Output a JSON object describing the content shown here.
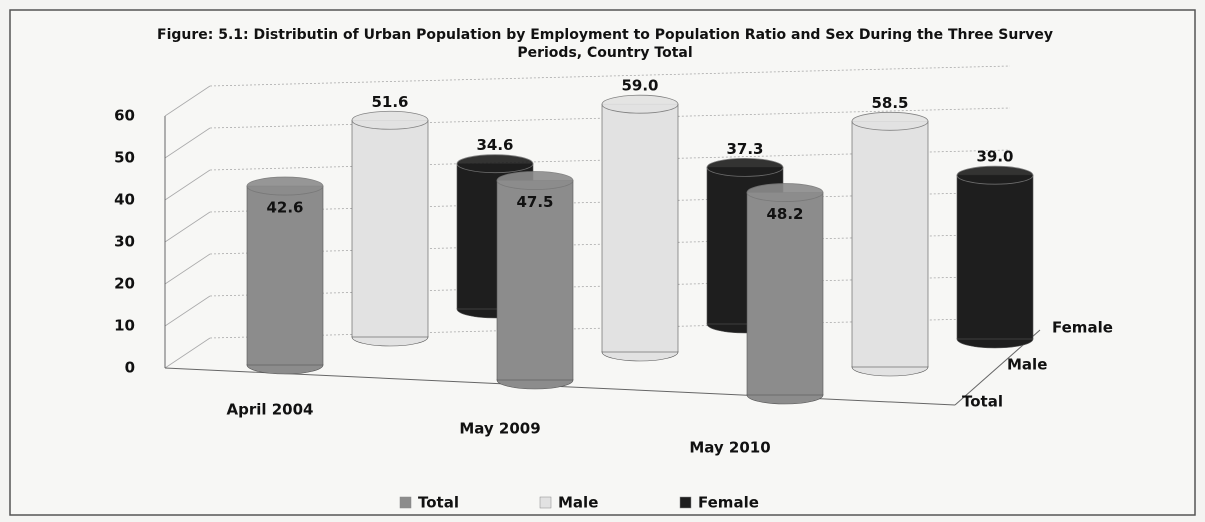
{
  "chart_data": {
    "type": "bar3d",
    "title": "Figure: 5.1: Distributin of Urban Population by Employment to Population Ratio and Sex  During the Three Survey Periods, Country Total",
    "categories": [
      "April 2004",
      "May 2009",
      "May 2010"
    ],
    "series": [
      {
        "name": "Total",
        "color": "#8c8c8c",
        "values": [
          42.6,
          47.5,
          48.2
        ],
        "value_labels": [
          "42.6",
          "47.5",
          "48.2"
        ]
      },
      {
        "name": "Male",
        "color": "#e2e2e2",
        "values": [
          51.6,
          59.0,
          58.5
        ],
        "value_labels": [
          "51.6",
          "59.0",
          "58.5"
        ]
      },
      {
        "name": "Female",
        "color": "#1e1e1e",
        "values": [
          34.6,
          37.3,
          39.0
        ],
        "value_labels": [
          "34.6",
          "37.3",
          "39.0"
        ]
      }
    ],
    "ylim": [
      0,
      60
    ],
    "yticks": [
      0,
      10,
      20,
      30,
      40,
      50,
      60
    ],
    "grid": true,
    "legend": "bottom"
  }
}
